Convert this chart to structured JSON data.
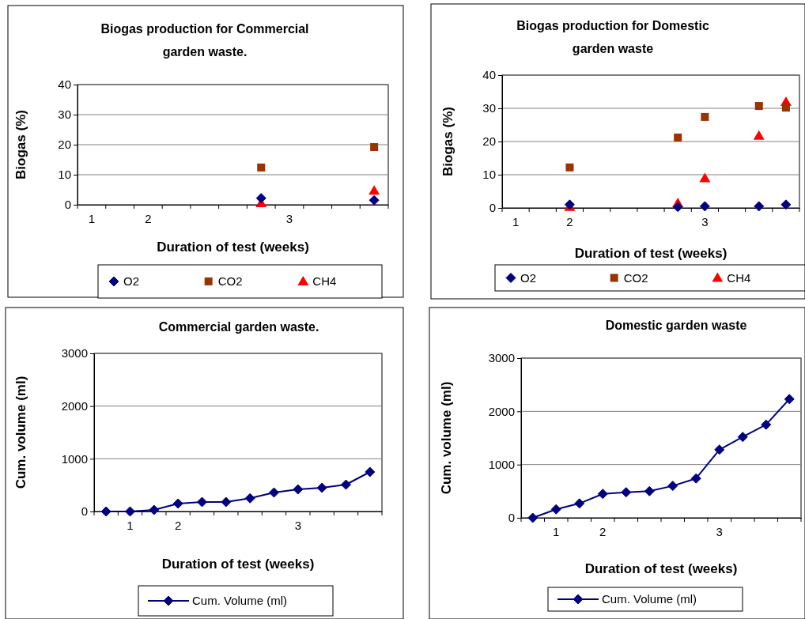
{
  "chart_data": [
    {
      "type": "scatter",
      "title": "Biogas production for Commercial garden waste.",
      "xlabel": "Duration of test (weeks)",
      "ylabel": "Biogas (%)",
      "categories": [
        "1",
        null,
        "2",
        null,
        null,
        null,
        null,
        "3",
        null,
        null,
        null
      ],
      "series": [
        {
          "name": "O2",
          "marker": "diamond",
          "color": "#000080",
          "values": [
            null,
            null,
            null,
            null,
            null,
            null,
            2.2,
            null,
            null,
            null,
            1.5
          ]
        },
        {
          "name": "CO2",
          "marker": "square",
          "color": "#993300",
          "values": [
            null,
            null,
            null,
            null,
            null,
            null,
            12.4,
            null,
            null,
            null,
            19.2
          ]
        },
        {
          "name": "CH4",
          "marker": "triangle",
          "color": "#ff0000",
          "values": [
            null,
            null,
            null,
            null,
            null,
            null,
            0.5,
            null,
            null,
            null,
            4.7
          ]
        }
      ],
      "ylim": [
        0,
        40
      ],
      "yticks": [
        0,
        10,
        20,
        30,
        40
      ],
      "grid": "y",
      "legend": "bottom"
    },
    {
      "type": "scatter",
      "title": "Biogas production for Domestic garden waste",
      "xlabel": "Duration of test (weeks)",
      "ylabel": "Biogas (%)",
      "categories": [
        "1",
        null,
        "2",
        null,
        null,
        null,
        null,
        "3",
        null,
        null,
        null
      ],
      "series": [
        {
          "name": "O2",
          "marker": "diamond",
          "color": "#000080",
          "values": [
            null,
            null,
            1.0,
            null,
            null,
            null,
            0.3,
            0.5,
            null,
            0.5,
            1.0
          ]
        },
        {
          "name": "CO2",
          "marker": "square",
          "color": "#993300",
          "values": [
            null,
            null,
            12.2,
            null,
            null,
            null,
            21.2,
            27.4,
            null,
            30.7,
            30.2
          ]
        },
        {
          "name": "CH4",
          "marker": "triangle",
          "color": "#ff0000",
          "values": [
            null,
            null,
            0.3,
            null,
            null,
            null,
            1.4,
            8.9,
            null,
            21.7,
            31.9
          ]
        }
      ],
      "ylim": [
        0,
        40
      ],
      "yticks": [
        0,
        10,
        20,
        30,
        40
      ],
      "grid": "y",
      "legend": "bottom"
    },
    {
      "type": "line",
      "title": "Commercial garden waste.",
      "xlabel": "Duration of test (weeks)",
      "ylabel": "Cum. volume (ml)",
      "categories": [
        null,
        "1",
        null,
        "2",
        null,
        null,
        null,
        null,
        "3",
        null,
        null,
        null
      ],
      "series": [
        {
          "name": "Cum. Volume (ml)",
          "marker": "diamond",
          "color": "#000080",
          "values": [
            0,
            0,
            30,
            150,
            180,
            180,
            250,
            360,
            420,
            450,
            510,
            750
          ]
        }
      ],
      "ylim": [
        0,
        3000
      ],
      "yticks": [
        0,
        1000,
        2000,
        3000
      ],
      "grid": "y",
      "legend": "bottom"
    },
    {
      "type": "line",
      "title": "Domestic garden waste",
      "xlabel": "Duration of test (weeks)",
      "ylabel": "Cum. volume (ml)",
      "categories": [
        null,
        "1",
        null,
        "2",
        null,
        null,
        null,
        null,
        "3",
        null,
        null,
        null
      ],
      "series": [
        {
          "name": "Cum. Volume (ml)",
          "marker": "diamond",
          "color": "#000080",
          "values": [
            0,
            160,
            270,
            450,
            480,
            500,
            600,
            740,
            1280,
            1520,
            1750,
            2230
          ]
        }
      ],
      "ylim": [
        0,
        3000
      ],
      "yticks": [
        0,
        1000,
        2000,
        3000
      ],
      "grid": "y",
      "legend": "bottom"
    }
  ]
}
